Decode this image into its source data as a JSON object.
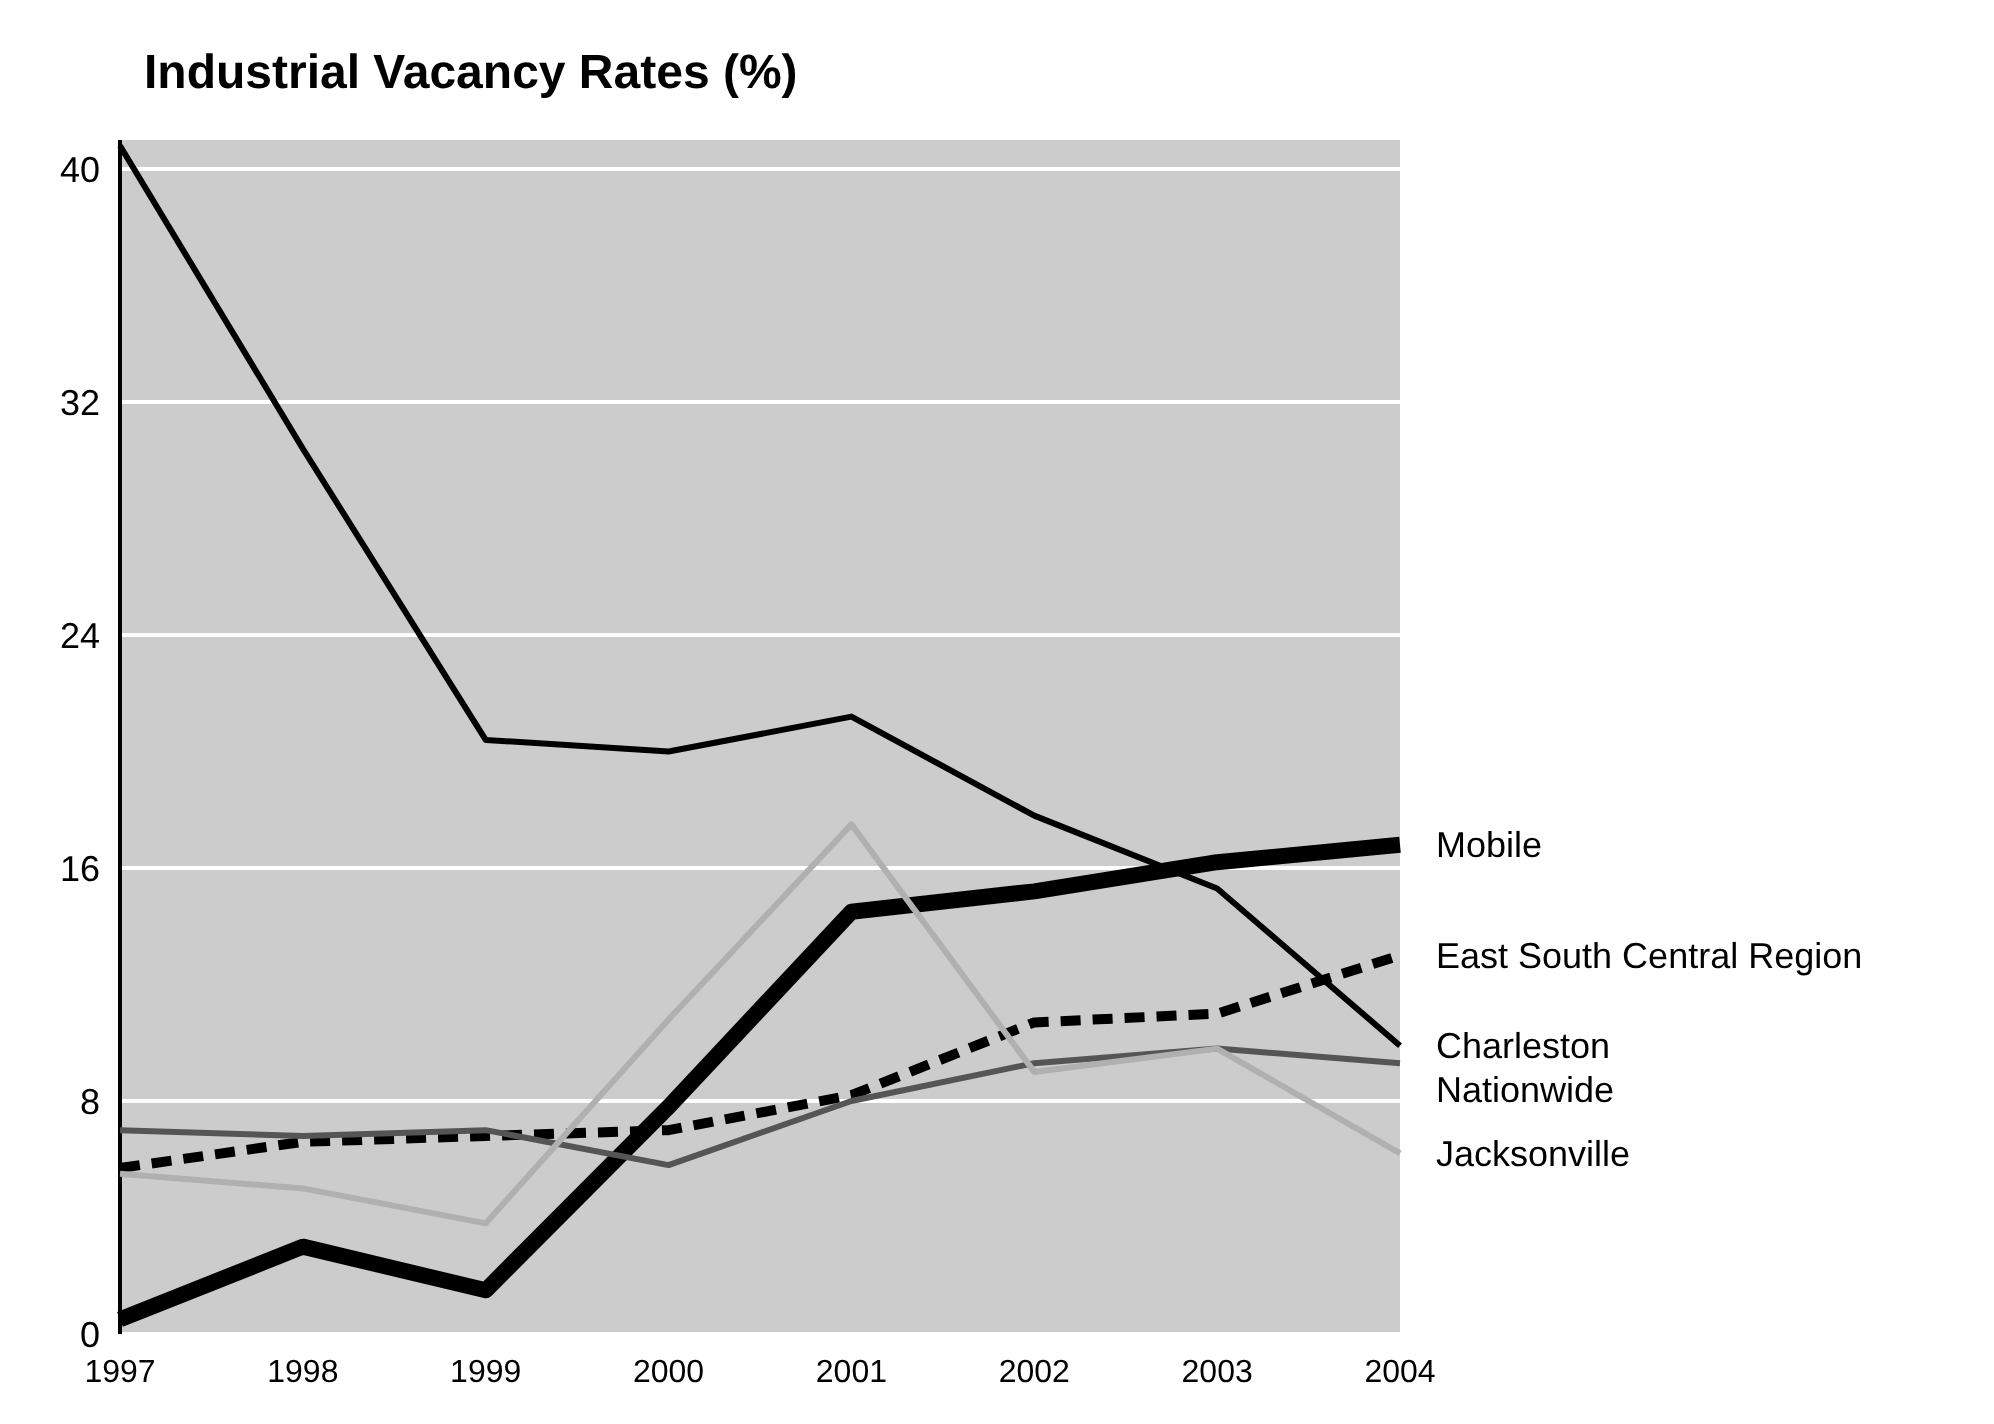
{
  "chart_data": {
    "type": "line",
    "title": "Industrial Vacancy Rates (%)",
    "categories": [
      "1997",
      "1998",
      "1999",
      "2000",
      "2001",
      "2002",
      "2003",
      "2004"
    ],
    "ylim": [
      0,
      41
    ],
    "yticks": [
      0,
      8,
      16,
      24,
      32,
      40
    ],
    "grid": "y",
    "series": [
      {
        "name": "Mobile",
        "color": "#000000",
        "values": [
          0.5,
          3.0,
          1.5,
          7.8,
          14.5,
          15.2,
          16.2,
          16.8
        ]
      },
      {
        "name": "East South Central Region",
        "color": "#000000",
        "line_style": "dashed",
        "values": [
          5.7,
          6.6,
          6.8,
          7.0,
          8.2,
          10.7,
          11.0,
          13.0
        ]
      },
      {
        "name": "Charleston",
        "color": "#000000",
        "values": [
          40.8,
          30.4,
          20.4,
          20.0,
          21.2,
          17.8,
          15.3,
          9.9
        ]
      },
      {
        "name": "Nationwide",
        "color": "#555555",
        "values": [
          7.0,
          6.8,
          7.0,
          5.8,
          8.0,
          9.3,
          9.8,
          9.3
        ]
      },
      {
        "name": "Jacksonville",
        "color": "#b0b0b0",
        "values": [
          5.5,
          5.0,
          3.8,
          10.8,
          17.5,
          9.0,
          9.8,
          6.2
        ]
      }
    ]
  }
}
